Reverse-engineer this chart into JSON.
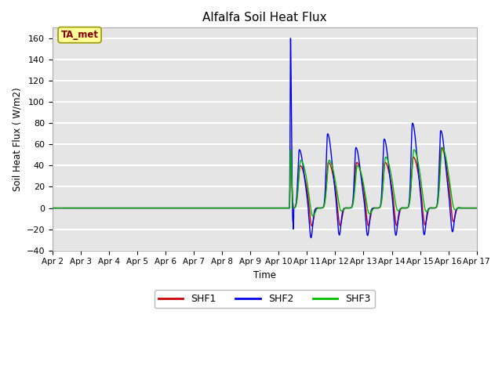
{
  "title": "Alfalfa Soil Heat Flux",
  "ylabel": "Soil Heat Flux ( W/m2)",
  "xlabel": "Time",
  "ylim": [
    -40,
    170
  ],
  "yticks": [
    -40,
    -20,
    0,
    20,
    40,
    60,
    80,
    100,
    120,
    140,
    160
  ],
  "background_color": "#e5e5e5",
  "grid_color": "#ffffff",
  "annotation_text": "TA_met",
  "annotation_bg": "#ffff99",
  "annotation_border": "#999900",
  "annotation_text_color": "#880000",
  "shf1_color": "#cc0000",
  "shf2_color": "#0000ee",
  "shf3_color": "#00bb00",
  "legend_labels": [
    "SHF1",
    "SHF2",
    "SHF3"
  ],
  "x_tick_labels": [
    "Apr 2",
    "Apr 3",
    "Apr 4",
    "Apr 5",
    "Apr 6",
    "Apr 7",
    "Apr 8",
    "Apr 9",
    "Apr 10",
    "Apr 11",
    "Apr 12",
    "Apr 13",
    "Apr 14",
    "Apr 15",
    "Apr 16",
    "Apr 17"
  ]
}
